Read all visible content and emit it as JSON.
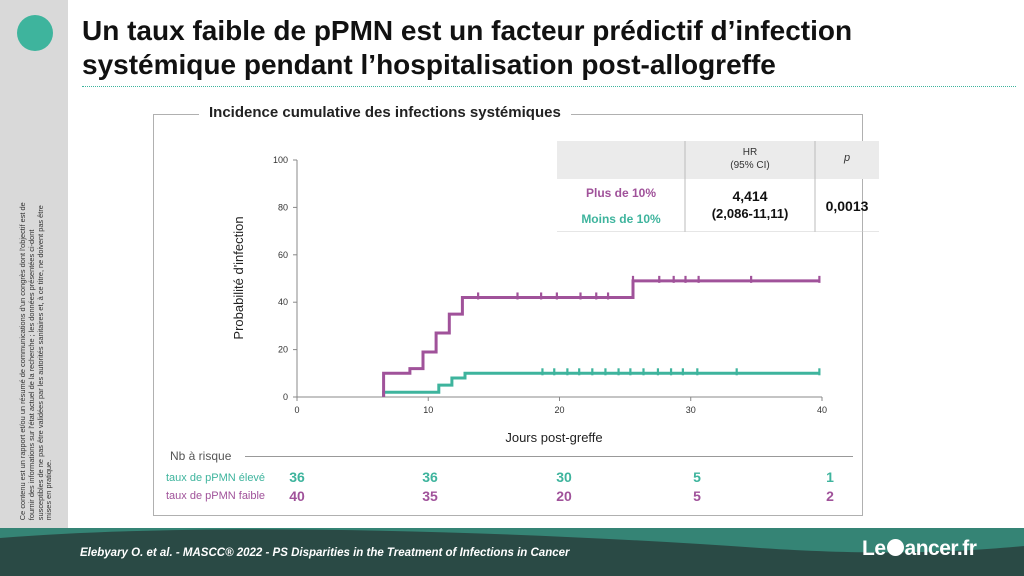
{
  "slide": {
    "title": "Un taux faible de pPMN est un facteur prédictif d’infection systémique pendant l’hospitalisation post-allogreffe",
    "sidebar_text": "Ce contenu est un rapport et/ou un résumé de communications d'un congrès dont l'objectif est de fournir des informations sur l'état actuel de la recherche ; les données présentées ci-dont susceptibles de ne pas être validées par les autorités sanitaires et, à ce titre, ne doivent pas être mises en pratique.",
    "footer_citation": "Elebyary O. et al. - MASCC® 2022 - PS Disparities in the Treatment of Infections in Cancer",
    "brand_left": "Le",
    "brand_right": "ancer.fr"
  },
  "chart_data": {
    "type": "line",
    "title": "Incidence cumulative des infections systémiques",
    "xlabel": "Jours post-greffe",
    "ylabel": "Probabilité d'infection",
    "xlim": [
      0,
      40
    ],
    "ylim": [
      0,
      100
    ],
    "xticks": [
      "0",
      "10",
      "20",
      "30",
      "40"
    ],
    "yticks": [
      "0",
      "20",
      "40",
      "60",
      "80",
      "100"
    ],
    "series": [
      {
        "name": "Plus de 10%",
        "color": "#3eb49d",
        "steps": [
          [
            0,
            0
          ],
          [
            6.6,
            0
          ],
          [
            6.6,
            2
          ],
          [
            10.8,
            2
          ],
          [
            10.8,
            5
          ],
          [
            11.8,
            5
          ],
          [
            11.8,
            8
          ],
          [
            12.8,
            8
          ],
          [
            12.8,
            10
          ],
          [
            39.8,
            10
          ]
        ],
        "censors": [
          18.7,
          19.6,
          20.6,
          21.5,
          22.5,
          23.5,
          24.5,
          25.4,
          26.4,
          27.5,
          28.5,
          29.4,
          30.5,
          33.5,
          39.8
        ]
      },
      {
        "name": "Moins de 10%",
        "color": "#a0529a",
        "steps": [
          [
            0,
            0
          ],
          [
            6.6,
            0
          ],
          [
            6.6,
            10
          ],
          [
            8.6,
            10
          ],
          [
            8.6,
            12
          ],
          [
            9.6,
            12
          ],
          [
            9.6,
            19
          ],
          [
            10.6,
            19
          ],
          [
            10.6,
            27
          ],
          [
            11.6,
            27
          ],
          [
            11.6,
            35
          ],
          [
            12.6,
            35
          ],
          [
            12.6,
            42
          ],
          [
            25.6,
            42
          ],
          [
            25.6,
            49
          ],
          [
            39.8,
            49
          ]
        ],
        "censors": [
          13.8,
          16.8,
          18.6,
          19.8,
          21.6,
          22.8,
          23.7,
          25.6,
          27.6,
          28.7,
          29.6,
          30.6,
          34.6,
          39.8
        ]
      }
    ],
    "hr_table": {
      "head_hr": "HR",
      "head_ci": "(95% CI)",
      "head_p": "p",
      "row1_label": "Plus de 10%",
      "row2_label": "Moins de 10%",
      "hr_value": "4,414",
      "ci_value": "(2,086-11,11)",
      "p_value": "0,0013"
    },
    "risk_table": {
      "header": "Nb à risque",
      "rows": [
        {
          "label": "taux de pPMN élevé",
          "color": "#3eb49d",
          "values": [
            "36",
            "36",
            "30",
            "5",
            "1"
          ]
        },
        {
          "label": "taux de pPMN faible",
          "color": "#a0529a",
          "values": [
            "40",
            "35",
            "20",
            "5",
            "2"
          ]
        }
      ]
    }
  }
}
